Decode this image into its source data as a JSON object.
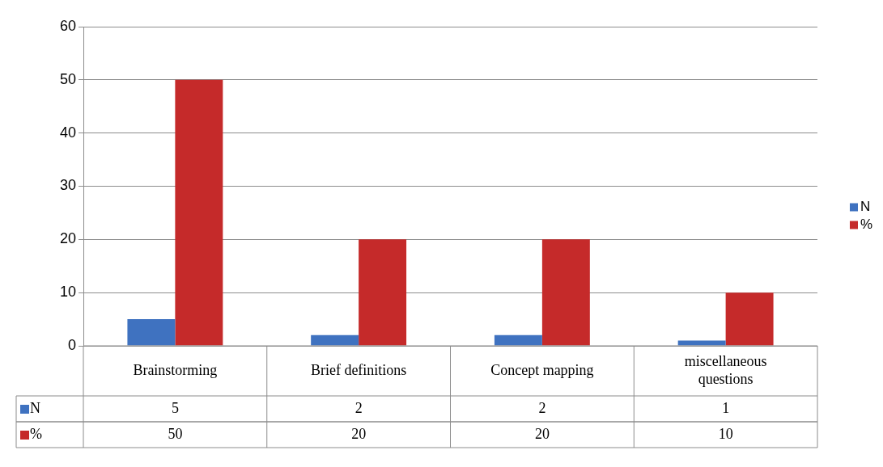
{
  "chart_data": {
    "type": "bar",
    "categories": [
      "Brainstorming",
      "Brief definitions",
      "Concept mapping",
      "miscellaneous questions"
    ],
    "series": [
      {
        "name": "N",
        "color": "#3f72c0",
        "values": [
          5,
          2,
          2,
          1
        ]
      },
      {
        "name": "%",
        "color": "#c52a2a",
        "values": [
          50,
          20,
          20,
          10
        ]
      }
    ],
    "ylim": [
      0,
      60
    ],
    "yticks": [
      0,
      10,
      20,
      30,
      40,
      50,
      60
    ],
    "grid": "y",
    "legend": "right",
    "data_labels": true
  }
}
